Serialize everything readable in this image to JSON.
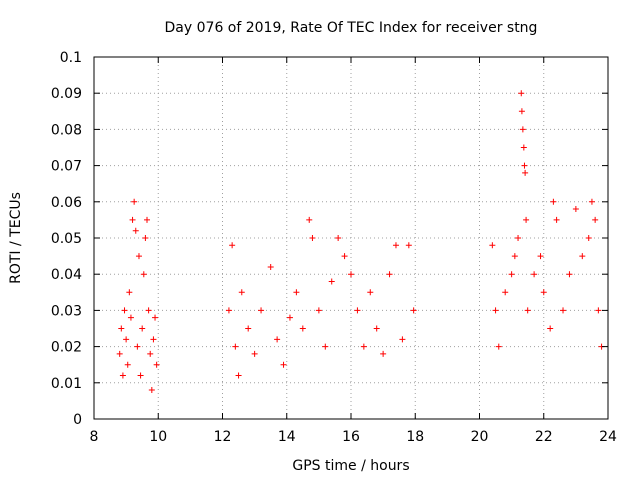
{
  "chart_data": {
    "type": "scatter",
    "title": "Day 076 of 2019, Rate Of TEC Index for receiver stng",
    "xlabel": "GPS time / hours",
    "ylabel": "ROTI / TECUs",
    "xlim": [
      8,
      24
    ],
    "ylim": [
      0,
      0.1
    ],
    "xticks": [
      "8",
      "10",
      "12",
      "14",
      "16",
      "18",
      "20",
      "22",
      "24"
    ],
    "yticks": [
      "0",
      "0.01",
      "0.02",
      "0.03",
      "0.04",
      "0.05",
      "0.06",
      "0.07",
      "0.08",
      "0.09",
      "0.1"
    ],
    "grid": true,
    "marker": "+",
    "color": "#ff0000",
    "series": [
      {
        "name": "ROTI",
        "points": [
          [
            8.8,
            0.018
          ],
          [
            8.85,
            0.025
          ],
          [
            8.9,
            0.012
          ],
          [
            8.95,
            0.03
          ],
          [
            9.0,
            0.022
          ],
          [
            9.05,
            0.015
          ],
          [
            9.1,
            0.035
          ],
          [
            9.15,
            0.028
          ],
          [
            9.2,
            0.055
          ],
          [
            9.25,
            0.06
          ],
          [
            9.3,
            0.052
          ],
          [
            9.35,
            0.02
          ],
          [
            9.4,
            0.045
          ],
          [
            9.45,
            0.012
          ],
          [
            9.5,
            0.025
          ],
          [
            9.55,
            0.04
          ],
          [
            9.6,
            0.05
          ],
          [
            9.65,
            0.055
          ],
          [
            9.7,
            0.03
          ],
          [
            9.75,
            0.018
          ],
          [
            9.8,
            0.008
          ],
          [
            9.85,
            0.022
          ],
          [
            9.9,
            0.028
          ],
          [
            9.95,
            0.015
          ],
          [
            12.2,
            0.03
          ],
          [
            12.3,
            0.048
          ],
          [
            12.4,
            0.02
          ],
          [
            12.5,
            0.012
          ],
          [
            12.6,
            0.035
          ],
          [
            12.8,
            0.025
          ],
          [
            13.0,
            0.018
          ],
          [
            13.2,
            0.03
          ],
          [
            13.5,
            0.042
          ],
          [
            13.7,
            0.022
          ],
          [
            13.9,
            0.015
          ],
          [
            14.1,
            0.028
          ],
          [
            14.3,
            0.035
          ],
          [
            14.5,
            0.025
          ],
          [
            14.7,
            0.055
          ],
          [
            14.8,
            0.05
          ],
          [
            15.0,
            0.03
          ],
          [
            15.2,
            0.02
          ],
          [
            15.4,
            0.038
          ],
          [
            15.6,
            0.05
          ],
          [
            15.8,
            0.045
          ],
          [
            16.0,
            0.04
          ],
          [
            16.2,
            0.03
          ],
          [
            16.4,
            0.02
          ],
          [
            16.6,
            0.035
          ],
          [
            16.8,
            0.025
          ],
          [
            17.0,
            0.018
          ],
          [
            17.2,
            0.04
          ],
          [
            17.4,
            0.048
          ],
          [
            17.6,
            0.022
          ],
          [
            17.8,
            0.048
          ],
          [
            17.95,
            0.03
          ],
          [
            20.4,
            0.048
          ],
          [
            20.5,
            0.03
          ],
          [
            20.6,
            0.02
          ],
          [
            20.8,
            0.035
          ],
          [
            21.0,
            0.04
          ],
          [
            21.1,
            0.045
          ],
          [
            21.2,
            0.05
          ],
          [
            21.3,
            0.09
          ],
          [
            21.32,
            0.085
          ],
          [
            21.35,
            0.08
          ],
          [
            21.38,
            0.075
          ],
          [
            21.4,
            0.07
          ],
          [
            21.42,
            0.068
          ],
          [
            21.45,
            0.055
          ],
          [
            21.5,
            0.03
          ],
          [
            21.7,
            0.04
          ],
          [
            21.9,
            0.045
          ],
          [
            22.0,
            0.035
          ],
          [
            22.2,
            0.025
          ],
          [
            22.3,
            0.06
          ],
          [
            22.4,
            0.055
          ],
          [
            22.6,
            0.03
          ],
          [
            22.8,
            0.04
          ],
          [
            23.0,
            0.058
          ],
          [
            23.2,
            0.045
          ],
          [
            23.4,
            0.05
          ],
          [
            23.5,
            0.06
          ],
          [
            23.6,
            0.055
          ],
          [
            23.7,
            0.03
          ],
          [
            23.8,
            0.02
          ]
        ]
      }
    ]
  }
}
